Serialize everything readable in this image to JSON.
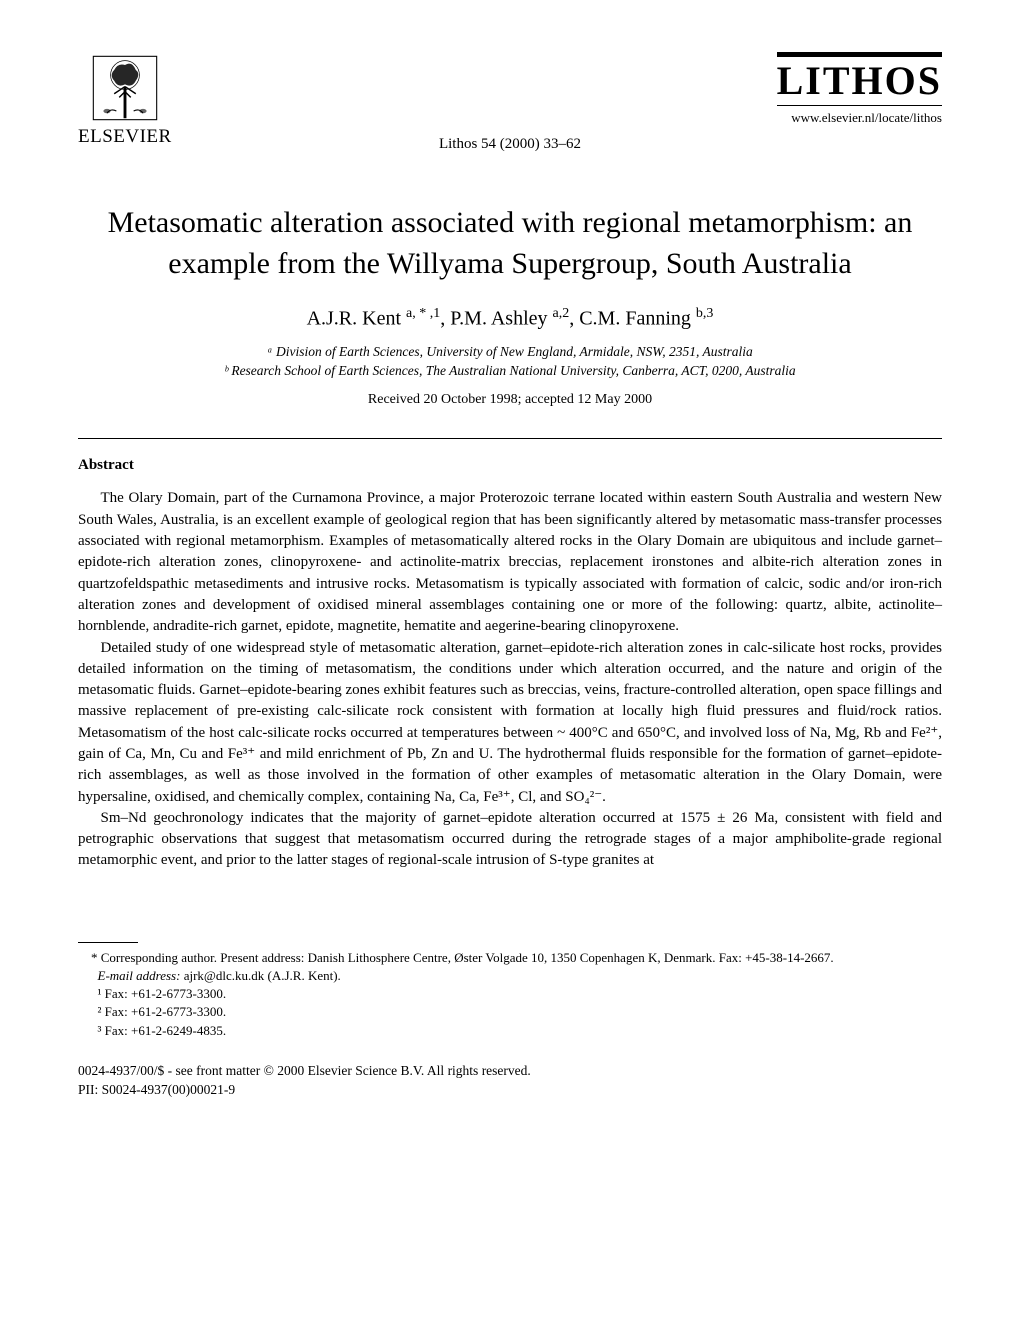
{
  "header": {
    "publisher": "ELSEVIER",
    "citation": "Lithos 54 (2000) 33–62",
    "journal_logo_text": "LITHOS",
    "url": "www.elsevier.nl/locate/lithos"
  },
  "title": "Metasomatic alteration associated with regional metamorphism: an example from the Willyama Supergroup, South Australia",
  "authors_html": "A.J.R. Kent <sup>a, * ,1</sup>, P.M. Ashley <sup>a,2</sup>, C.M. Fanning <sup>b,3</sup>",
  "affiliations": [
    "ᵃ Division of Earth Sciences, University of New England, Armidale, NSW, 2351, Australia",
    "ᵇ Research School of Earth Sciences, The Australian National University, Canberra, ACT, 0200, Australia"
  ],
  "received": "Received 20 October 1998; accepted 12 May 2000",
  "abstract": {
    "heading": "Abstract",
    "paragraphs": [
      "The Olary Domain, part of the Curnamona Province, a major Proterozoic terrane located within eastern South Australia and western New South Wales, Australia, is an excellent example of geological region that has been significantly altered by metasomatic mass-transfer processes associated with regional metamorphism. Examples of metasomatically altered rocks in the Olary Domain are ubiquitous and include garnet–epidote-rich alteration zones, clinopyroxene- and actinolite-matrix breccias, replacement ironstones and albite-rich alteration zones in quartzofeldspathic metasediments and intrusive rocks. Metasomatism is typically associated with formation of calcic, sodic and/or iron-rich alteration zones and development of oxidised mineral assemblages containing one or more of the following: quartz, albite, actinolite–hornblende, andradite-rich garnet, epidote, magnetite, hematite and aegerine-bearing clinopyroxene.",
      "Detailed study of one widespread style of metasomatic alteration, garnet–epidote-rich alteration zones in calc-silicate host rocks, provides detailed information on the timing of metasomatism, the conditions under which alteration occurred, and the nature and origin of the metasomatic fluids. Garnet–epidote-bearing zones exhibit features such as breccias, veins, fracture-controlled alteration, open space fillings and massive replacement of pre-existing calc-silicate rock consistent with formation at locally high fluid pressures and fluid/rock ratios. Metasomatism of the host calc-silicate rocks occurred at temperatures between ~ 400°C and 650°C, and involved loss of Na, Mg, Rb and Fe²⁺, gain of Ca, Mn, Cu and Fe³⁺ and mild enrichment of Pb, Zn and U. The hydrothermal fluids responsible for the formation of garnet–epidote-rich assemblages, as well as those involved in the formation of other examples of metasomatic alteration in the Olary Domain, were hypersaline, oxidised, and chemically complex, containing Na, Ca, Fe³⁺, Cl, and SO₄²⁻.",
      "Sm–Nd geochronology indicates that the majority of garnet–epidote alteration occurred at 1575 ± 26 Ma, consistent with field and petrographic observations that suggest that metasomatism occurred during the retrograde stages of a major amphibolite-grade regional metamorphic event, and prior to the latter stages of regional-scale intrusion of S-type granites at"
    ]
  },
  "footnotes": {
    "corresponding": "* Corresponding author. Present address: Danish Lithosphere Centre, Øster Volgade 10, 1350 Copenhagen K, Denmark. Fax: +45-38-14-2667.",
    "email_label": "E-mail address:",
    "email_value": " ajrk@dlc.ku.dk (A.J.R. Kent).",
    "fax1": "¹ Fax: +61-2-6773-3300.",
    "fax2": "² Fax: +61-2-6773-3300.",
    "fax3": "³ Fax: +61-2-6249-4835."
  },
  "copyright": {
    "line1": "0024-4937/00/$ - see front matter © 2000 Elsevier Science B.V. All rights reserved.",
    "line2": "PII: S0024-4937(00)00021-9"
  },
  "colors": {
    "text": "#000000",
    "background": "#ffffff"
  },
  "typography": {
    "title_fontsize_pt": 22,
    "body_fontsize_pt": 11,
    "footnote_fontsize_pt": 9.5
  }
}
